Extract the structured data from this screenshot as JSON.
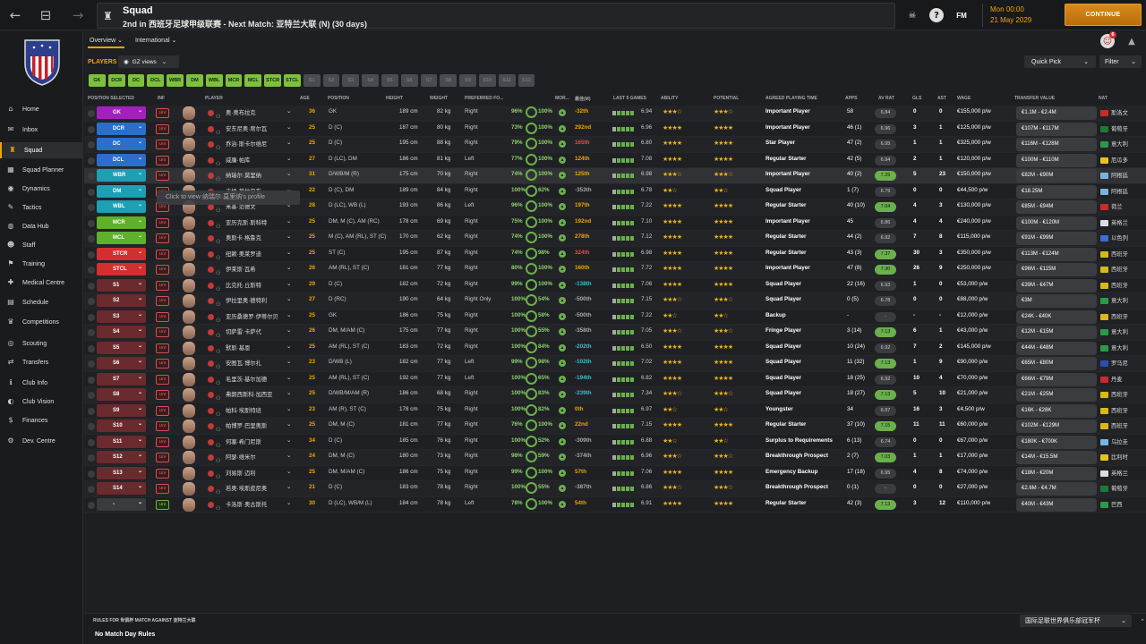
{
  "window": {
    "title": "Squad",
    "subtitle": "2nd in 西班牙足球甲级联赛 - Next Match: 亚特兰大联 (N) (30 days)"
  },
  "topbar": {
    "fm": "FM",
    "date_time": "Mon 00:00",
    "date": "21 May 2029",
    "continue": "CONTINUE",
    "notif": "6"
  },
  "sidebar": [
    {
      "label": "Home",
      "icon": "home-icon",
      "glyph": "⌂"
    },
    {
      "label": "Inbox",
      "icon": "inbox-icon",
      "glyph": "✉"
    },
    {
      "label": "Squad",
      "icon": "squad-icon",
      "glyph": "♜",
      "active": true
    },
    {
      "label": "Squad Planner",
      "icon": "planner-icon",
      "glyph": "▦"
    },
    {
      "label": "Dynamics",
      "icon": "dynamics-icon",
      "glyph": "◉"
    },
    {
      "label": "Tactics",
      "icon": "tactics-icon",
      "glyph": "✎"
    },
    {
      "label": "Data Hub",
      "icon": "data-hub-icon",
      "glyph": "◍"
    },
    {
      "label": "Staff",
      "icon": "staff-icon",
      "glyph": "☻"
    },
    {
      "label": "Training",
      "icon": "training-icon",
      "glyph": "⚑"
    },
    {
      "label": "Medical Centre",
      "icon": "medical-icon",
      "glyph": "✚"
    },
    {
      "label": "Schedule",
      "icon": "schedule-icon",
      "glyph": "▤"
    },
    {
      "label": "Competitions",
      "icon": "trophy-icon",
      "glyph": "♛"
    },
    {
      "label": "Scouting",
      "icon": "scouting-icon",
      "glyph": "◎"
    },
    {
      "label": "Transfers",
      "icon": "transfers-icon",
      "glyph": "⇄"
    },
    {
      "label": "Club Info",
      "icon": "club-info-icon",
      "glyph": "ℹ"
    },
    {
      "label": "Club Vision",
      "icon": "club-vision-icon",
      "glyph": "◐"
    },
    {
      "label": "Finances",
      "icon": "finances-icon",
      "glyph": "$"
    },
    {
      "label": "Dev. Centre",
      "icon": "dev-centre-icon",
      "glyph": "⚙"
    }
  ],
  "tabs": [
    {
      "label": "Overview",
      "active": true
    },
    {
      "label": "International"
    }
  ],
  "toolbar": {
    "players_label": "PLAYERS",
    "views": "GZ views",
    "quick_pick": "Quick Pick",
    "filter": "Filter"
  },
  "chips": [
    {
      "label": "GK",
      "on": true
    },
    {
      "label": "DCR",
      "on": true
    },
    {
      "label": "DC",
      "on": true
    },
    {
      "label": "DCL",
      "on": true
    },
    {
      "label": "WBR",
      "on": true
    },
    {
      "label": "DM",
      "on": true
    },
    {
      "label": "WBL",
      "on": true
    },
    {
      "label": "MCR",
      "on": true
    },
    {
      "label": "MCL",
      "on": true
    },
    {
      "label": "STCR",
      "on": true
    },
    {
      "label": "STCL",
      "on": true
    },
    {
      "label": "S1",
      "on": false
    },
    {
      "label": "S2",
      "on": false
    },
    {
      "label": "S3",
      "on": false
    },
    {
      "label": "S4",
      "on": false
    },
    {
      "label": "S5",
      "on": false
    },
    {
      "label": "S6",
      "on": false
    },
    {
      "label": "S7",
      "on": false
    },
    {
      "label": "S8",
      "on": false
    },
    {
      "label": "S9",
      "on": false
    },
    {
      "label": "S10",
      "on": false
    },
    {
      "label": "S11",
      "on": false
    },
    {
      "label": "S12",
      "on": false
    }
  ],
  "headers": [
    "POSITION SELECTED",
    "INF",
    "PLAYER",
    "AGE",
    "POSITION",
    "HEIGHT",
    "WEIGHT",
    "PREFERRED FO...",
    "MOR...",
    "最佳(M)",
    "LAST 5 GAMES",
    "ABILITY",
    "POTENTIAL",
    "AGREED PLAYING TIME",
    "APPS",
    "AV RAT",
    "GLS",
    "AST",
    "WAGE",
    "TRANSFER VALUE",
    "NAT"
  ],
  "tooltip": "Click to view 纳瑞尔·莫里纳's profile",
  "rows": [
    {
      "pos": "GK",
      "color": "#a41fc0",
      "inf": "Unr",
      "name": "奥·奥布拉克",
      "age": "36",
      "position": "GK",
      "height": "189 cm",
      "weight": "82 kg",
      "foot": "Right",
      "c1": "96%",
      "c2": "100%",
      "mor": "-32th",
      "morc": "#f0a500",
      "avg": "6.94",
      "ab": "★★★☆",
      "pot": "★★★☆",
      "time": "Important Player",
      "apps": "58",
      "rat": "6.84",
      "rg": false,
      "gls": "0",
      "ast": "0",
      "wage": "€155,000 p/w",
      "tv": "€1.1M - €2.4M",
      "nat": "斯洛文",
      "flag": "#cc2a2a"
    },
    {
      "pos": "DCR",
      "color": "#2a6fc9",
      "inf": "Unr",
      "name": "安东尼奥·席尔瓦",
      "age": "25",
      "position": "D (C)",
      "height": "187 cm",
      "weight": "80 kg",
      "foot": "Right",
      "c1": "73%",
      "c2": "100%",
      "mor": "292nd",
      "morc": "#f0a500",
      "avg": "6.96",
      "ab": "★★★★",
      "pot": "★★★★",
      "time": "Important Player",
      "apps": "46 (1)",
      "rat": "6.96",
      "rg": false,
      "gls": "3",
      "ast": "1",
      "wage": "€125,000 p/w",
      "tv": "€107M - €117M",
      "nat": "葡萄牙",
      "flag": "#1c7a35"
    },
    {
      "pos": "DC",
      "color": "#2a6fc9",
      "inf": "Unr",
      "name": "乔治·斯卡尔维尼",
      "age": "25",
      "position": "D (C)",
      "height": "195 cm",
      "weight": "88 kg",
      "foot": "Right",
      "c1": "79%",
      "c2": "100%",
      "mor": "165th",
      "morc": "#e05050",
      "avg": "6.80",
      "ab": "★★★★",
      "pot": "★★★★",
      "time": "Star Player",
      "apps": "47 (2)",
      "rat": "6.95",
      "rg": false,
      "gls": "1",
      "ast": "1",
      "wage": "€325,000 p/w",
      "tv": "€116M - €128M",
      "nat": "意大利",
      "flag": "#2b9a48"
    },
    {
      "pos": "DCL",
      "color": "#2a6fc9",
      "inf": "Unr",
      "name": "威廉·帕库",
      "age": "27",
      "position": "D (LC), DM",
      "height": "186 cm",
      "weight": "81 kg",
      "foot": "Left",
      "c1": "77%",
      "c2": "100%",
      "mor": "124th",
      "morc": "#f0a500",
      "avg": "7.08",
      "ab": "★★★★",
      "pot": "★★★★",
      "time": "Regular Starter",
      "apps": "42 (5)",
      "rat": "6.94",
      "rg": false,
      "gls": "2",
      "ast": "1",
      "wage": "€120,000 p/w",
      "tv": "€100M - €110M",
      "nat": "厄瓜多",
      "flag": "#e8c41a"
    },
    {
      "pos": "WBR",
      "color": "#1e9fb3",
      "inf": "Unr",
      "name": "纳瑞尔·莫里纳",
      "age": "31",
      "position": "D/WB/M (R)",
      "height": "175 cm",
      "weight": "70 kg",
      "foot": "Right",
      "c1": "74%",
      "c2": "100%",
      "mor": "125th",
      "morc": "#f0a500",
      "avg": "6.98",
      "ab": "★★★☆",
      "pot": "★★★☆",
      "time": "Important Player",
      "apps": "40 (2)",
      "rat": "7.25",
      "rg": true,
      "gls": "5",
      "ast": "23",
      "wage": "€150,000 p/w",
      "tv": "€82M - €90M",
      "nat": "阿根廷",
      "flag": "#7ab3e0",
      "hl": true
    },
    {
      "pos": "DM",
      "color": "#1e9fb3",
      "inf": "Unr",
      "name": "吉姆·莫拉安东",
      "age": "22",
      "position": "D (C), DM",
      "height": "189 cm",
      "weight": "84 kg",
      "foot": "Right",
      "c1": "100%",
      "c2": "62%",
      "mor": "-353th",
      "morc": "#aaa",
      "avg": "6.78",
      "ab": "★★☆",
      "pot": "★★☆",
      "time": "Squad Player",
      "apps": "1 (7)",
      "rat": "6.79",
      "rg": false,
      "gls": "0",
      "ast": "0",
      "wage": "€44,500 p/w",
      "tv": "€18.25M",
      "nat": "阿根廷",
      "flag": "#7ab3e0"
    },
    {
      "pos": "WBL",
      "color": "#1e9fb3",
      "inf": "Unr",
      "name": "米基·范德文",
      "age": "28",
      "position": "D (LC), WB (L)",
      "height": "193 cm",
      "weight": "86 kg",
      "foot": "Left",
      "c1": "96%",
      "c2": "100%",
      "mor": "197th",
      "morc": "#f0a500",
      "avg": "7.22",
      "ab": "★★★★",
      "pot": "★★★★",
      "time": "Regular Starter",
      "apps": "40 (10)",
      "rat": "7.04",
      "rg": true,
      "gls": "4",
      "ast": "3",
      "wage": "€130,000 p/w",
      "tv": "€85M - €94M",
      "nat": "荷兰",
      "flag": "#cc2a2a"
    },
    {
      "pos": "MCR",
      "color": "#5fb02a",
      "inf": "Unr",
      "name": "亚历克斯·斯科特",
      "age": "25",
      "position": "DM, M (C), AM (RC)",
      "height": "178 cm",
      "weight": "69 kg",
      "foot": "Right",
      "c1": "75%",
      "c2": "100%",
      "mor": "192nd",
      "morc": "#f0a500",
      "avg": "7.10",
      "ab": "★★★★",
      "pot": "★★★★",
      "time": "Important Player",
      "apps": "45",
      "rat": "6.86",
      "rg": false,
      "gls": "4",
      "ast": "4",
      "wage": "€240,000 p/w",
      "tv": "€100M - €120M",
      "nat": "英格兰",
      "flag": "#ddd"
    },
    {
      "pos": "MCL",
      "color": "#5fb02a",
      "inf": "Unr",
      "name": "奥斯卡·格鲁克",
      "age": "25",
      "position": "M (C), AM (RL), ST (C)",
      "height": "170 cm",
      "weight": "62 kg",
      "foot": "Right",
      "c1": "74%",
      "c2": "100%",
      "mor": "278th",
      "morc": "#f0a500",
      "avg": "7.12",
      "ab": "★★★★",
      "pot": "★★★★",
      "time": "Regular Starter",
      "apps": "44 (2)",
      "rat": "6.92",
      "rg": false,
      "gls": "7",
      "ast": "8",
      "wage": "€115,000 p/w",
      "tv": "€91M - €99M",
      "nat": "以色列",
      "flag": "#3a6fd0"
    },
    {
      "pos": "STCR",
      "color": "#d32f2f",
      "inf": "Unr",
      "name": "纽赖·奥莱罗迪",
      "age": "25",
      "position": "ST (C)",
      "height": "195 cm",
      "weight": "87 kg",
      "foot": "Right",
      "c1": "74%",
      "c2": "98%",
      "mor": "324th",
      "morc": "#e05050",
      "avg": "6.98",
      "ab": "★★★★",
      "pot": "★★★★",
      "time": "Regular Starter",
      "apps": "43 (3)",
      "rat": "7.37",
      "rg": true,
      "gls": "30",
      "ast": "3",
      "wage": "€350,000 p/w",
      "tv": "€113M - €124M",
      "nat": "西班牙",
      "flag": "#d8b81a"
    },
    {
      "pos": "STCL",
      "color": "#d32f2f",
      "inf": "Unr",
      "name": "伊莱斯·瓦希",
      "age": "26",
      "position": "AM (RL), ST (C)",
      "height": "181 cm",
      "weight": "77 kg",
      "foot": "Right",
      "c1": "80%",
      "c2": "100%",
      "mor": "160th",
      "morc": "#f0a500",
      "avg": "7.72",
      "ab": "★★★★",
      "pot": "★★★★",
      "time": "Important Player",
      "apps": "47 (8)",
      "rat": "7.30",
      "rg": true,
      "gls": "26",
      "ast": "9",
      "wage": "€250,000 p/w",
      "tv": "€96M - €115M",
      "nat": "西班牙",
      "flag": "#d8b81a"
    },
    {
      "pos": "S1",
      "color": "#6b2a2e",
      "inf": "Unr",
      "name": "比克托·丘斯特",
      "age": "29",
      "position": "D (C)",
      "height": "182 cm",
      "weight": "72 kg",
      "foot": "Right",
      "c1": "99%",
      "c2": "100%",
      "mor": "-138th",
      "morc": "#3fc0d0",
      "avg": "7.06",
      "ab": "★★★★",
      "pot": "★★★★",
      "time": "Squad Player",
      "apps": "22 (16)",
      "rat": "6.93",
      "rg": false,
      "gls": "1",
      "ast": "0",
      "wage": "€53,000 p/w",
      "tv": "€39M - €47M",
      "nat": "西班牙",
      "flag": "#d8b81a"
    },
    {
      "pos": "S2",
      "color": "#6b2a2e",
      "inf": "Unr",
      "name": "伊拉里奥·德特利",
      "age": "27",
      "position": "D (RC)",
      "height": "190 cm",
      "weight": "64 kg",
      "foot": "Right Only",
      "c1": "100%",
      "c2": "54%",
      "mor": "-500th",
      "morc": "#aaa",
      "avg": "7.15",
      "ab": "★★★☆",
      "pot": "★★★☆",
      "time": "Squad Player",
      "apps": "0 (5)",
      "rat": "6.78",
      "rg": false,
      "gls": "0",
      "ast": "0",
      "wage": "€88,000 p/w",
      "tv": "€3M",
      "nat": "意大利",
      "flag": "#2b9a48"
    },
    {
      "pos": "S3",
      "color": "#6b2a2e",
      "inf": "Unr",
      "name": "亚历桑德罗·伊蒂尔贝",
      "age": "25",
      "position": "GK",
      "height": "186 cm",
      "weight": "75 kg",
      "foot": "Right",
      "c1": "100%",
      "c2": "58%",
      "mor": "-500th",
      "morc": "#aaa",
      "avg": "7.22",
      "ab": "★★☆",
      "pot": "★★☆",
      "time": "Backup",
      "apps": "-",
      "rat": "-",
      "rg": false,
      "gls": "-",
      "ast": "-",
      "wage": "€12,000 p/w",
      "tv": "€24K - €40K",
      "nat": "西班牙",
      "flag": "#d8b81a"
    },
    {
      "pos": "S4",
      "color": "#6b2a2e",
      "inf": "Unr",
      "name": "切萨雷·卡萨代",
      "age": "26",
      "position": "DM, M/AM (C)",
      "height": "175 cm",
      "weight": "77 kg",
      "foot": "Right",
      "c1": "100%",
      "c2": "55%",
      "mor": "-358th",
      "morc": "#aaa",
      "avg": "7.05",
      "ab": "★★★☆",
      "pot": "★★★☆",
      "time": "Fringe Player",
      "apps": "3 (14)",
      "rat": "7.13",
      "rg": true,
      "gls": "6",
      "ast": "1",
      "wage": "€43,000 p/w",
      "tv": "€12M - €15M",
      "nat": "意大利",
      "flag": "#2b9a48"
    },
    {
      "pos": "S5",
      "color": "#6b2a2e",
      "inf": "Unr",
      "name": "默斯·基恩",
      "age": "25",
      "position": "AM (RL), ST (C)",
      "height": "183 cm",
      "weight": "72 kg",
      "foot": "Right",
      "c1": "100%",
      "c2": "84%",
      "mor": "-202th",
      "morc": "#3fc0d0",
      "avg": "6.50",
      "ab": "★★★★",
      "pot": "★★★★",
      "time": "Squad Player",
      "apps": "10 (24)",
      "rat": "6.92",
      "rg": false,
      "gls": "7",
      "ast": "2",
      "wage": "€145,000 p/w",
      "tv": "€44M - €48M",
      "nat": "意大利",
      "flag": "#2b9a48"
    },
    {
      "pos": "S6",
      "color": "#6b2a2e",
      "inf": "Unr",
      "name": "安图瓦·博尔扎",
      "age": "23",
      "position": "D/WB (L)",
      "height": "182 cm",
      "weight": "77 kg",
      "foot": "Left",
      "c1": "99%",
      "c2": "98%",
      "mor": "-102th",
      "morc": "#3fc0d0",
      "avg": "7.02",
      "ab": "★★★★",
      "pot": "★★★★",
      "time": "Squad Player",
      "apps": "11 (32)",
      "rat": "7.13",
      "rg": true,
      "gls": "1",
      "ast": "9",
      "wage": "€90,000 p/w",
      "tv": "€65M - €80M",
      "nat": "罗马尼",
      "flag": "#2a4fb0"
    },
    {
      "pos": "S7",
      "color": "#6b2a2e",
      "inf": "Unr",
      "name": "毛里茨·基尔加德",
      "age": "25",
      "position": "AM (RL), ST (C)",
      "height": "192 cm",
      "weight": "77 kg",
      "foot": "Left",
      "c1": "100%",
      "c2": "65%",
      "mor": "-194th",
      "morc": "#3fc0d0",
      "avg": "6.82",
      "ab": "★★★★",
      "pot": "★★★★",
      "time": "Squad Player",
      "apps": "18 (25)",
      "rat": "6.92",
      "rg": false,
      "gls": "10",
      "ast": "4",
      "wage": "€70,000 p/w",
      "tv": "€66M - €79M",
      "nat": "丹麦",
      "flag": "#cc2a2a"
    },
    {
      "pos": "S8",
      "color": "#6b2a2e",
      "inf": "Unr",
      "name": "弗朗西斯科·加西亚",
      "age": "25",
      "position": "D/WB/M/AM (R)",
      "height": "186 cm",
      "weight": "68 kg",
      "foot": "Right",
      "c1": "100%",
      "c2": "83%",
      "mor": "-239th",
      "morc": "#3fc0d0",
      "avg": "7.34",
      "ab": "★★★☆",
      "pot": "★★★☆",
      "time": "Squad Player",
      "apps": "18 (27)",
      "rat": "7.13",
      "rg": true,
      "gls": "5",
      "ast": "10",
      "wage": "€21,000 p/w",
      "tv": "€21M - €25M",
      "nat": "西班牙",
      "flag": "#d8b81a"
    },
    {
      "pos": "S9",
      "color": "#6b2a2e",
      "inf": "Unr",
      "name": "帕科·埃斯特班",
      "age": "23",
      "position": "AM (R), ST (C)",
      "height": "178 cm",
      "weight": "75 kg",
      "foot": "Right",
      "c1": "100%",
      "c2": "82%",
      "mor": "0th",
      "morc": "#f0a500",
      "avg": "6.97",
      "ab": "★★☆",
      "pot": "★★☆",
      "time": "Youngster",
      "apps": "34",
      "rat": "6.87",
      "rg": false,
      "gls": "16",
      "ast": "3",
      "wage": "€4,500 p/w",
      "tv": "€16K - €28K",
      "nat": "西班牙",
      "flag": "#d8b81a"
    },
    {
      "pos": "S10",
      "color": "#6b2a2e",
      "inf": "Unr",
      "name": "帕博罗·巴里奥斯",
      "age": "25",
      "position": "DM, M (C)",
      "height": "181 cm",
      "weight": "77 kg",
      "foot": "Right",
      "c1": "76%",
      "c2": "100%",
      "mor": "22nd",
      "morc": "#f0a500",
      "avg": "7.15",
      "ab": "★★★★",
      "pot": "★★★★",
      "time": "Regular Starter",
      "apps": "37 (10)",
      "rat": "7.15",
      "rg": true,
      "gls": "11",
      "ast": "11",
      "wage": "€60,000 p/w",
      "tv": "€102M - €129M",
      "nat": "西班牙",
      "flag": "#d8b81a"
    },
    {
      "pos": "S11",
      "color": "#6b2a2e",
      "inf": "Unr",
      "name": "何塞·希门尼斯",
      "age": "34",
      "position": "D (C)",
      "height": "185 cm",
      "weight": "76 kg",
      "foot": "Right",
      "c1": "100%",
      "c2": "52%",
      "mor": "-309th",
      "morc": "#aaa",
      "avg": "6.88",
      "ab": "★★☆",
      "pot": "★★☆",
      "time": "Surplus to Requirements",
      "apps": "6 (13)",
      "rat": "6.74",
      "rg": false,
      "gls": "0",
      "ast": "0",
      "wage": "€67,000 p/w",
      "tv": "€180K - €700K",
      "nat": "乌拉圭",
      "flag": "#7ab3e0"
    },
    {
      "pos": "S12",
      "color": "#6b2a2e",
      "inf": "Unr",
      "name": "阿瑟·维米尔",
      "age": "24",
      "position": "DM, M (C)",
      "height": "180 cm",
      "weight": "73 kg",
      "foot": "Right",
      "c1": "98%",
      "c2": "59%",
      "mor": "-374th",
      "morc": "#aaa",
      "avg": "6.96",
      "ab": "★★★☆",
      "pot": "★★★☆",
      "time": "Breakthrough Prospect",
      "apps": "2 (7)",
      "rat": "7.03",
      "rg": true,
      "gls": "1",
      "ast": "1",
      "wage": "€17,000 p/w",
      "tv": "€14M - €15.5M",
      "nat": "比利时",
      "flag": "#e8c41a"
    },
    {
      "pos": "S13",
      "color": "#6b2a2e",
      "inf": "Unr",
      "name": "刘易斯·迈利",
      "age": "25",
      "position": "DM, M/AM (C)",
      "height": "186 cm",
      "weight": "75 kg",
      "foot": "Right",
      "c1": "99%",
      "c2": "100%",
      "mor": "57th",
      "morc": "#f0a500",
      "avg": "7.06",
      "ab": "★★★★",
      "pot": "★★★★",
      "time": "Emergency Backup",
      "apps": "17 (18)",
      "rat": "6.95",
      "rg": false,
      "gls": "4",
      "ast": "8",
      "wage": "€74,000 p/w",
      "tv": "€18M - €20M",
      "nat": "英格兰",
      "flag": "#ddd"
    },
    {
      "pos": "S14",
      "color": "#6b2a2e",
      "inf": "Unr",
      "name": "若奥·埃斯皮尼奥",
      "age": "21",
      "position": "D (C)",
      "height": "183 cm",
      "weight": "78 kg",
      "foot": "Right",
      "c1": "100%",
      "c2": "55%",
      "mor": "-387th",
      "morc": "#aaa",
      "avg": "6.86",
      "ab": "★★★☆",
      "pot": "★★★☆",
      "time": "Breakthrough Prospect",
      "apps": "0 (1)",
      "rat": "-",
      "rg": false,
      "gls": "0",
      "ast": "0",
      "wage": "€27,000 p/w",
      "tv": "€2.6M - €4.7M",
      "nat": "葡萄牙",
      "flag": "#1c7a35"
    },
    {
      "pos": "-",
      "color": "#3a3b3f",
      "inf": "Unr",
      "infg": true,
      "name": "卡洛斯·奥古斯托",
      "age": "30",
      "position": "D (LC), WB/M (L)",
      "height": "184 cm",
      "weight": "78 kg",
      "foot": "Left",
      "c1": "78%",
      "c2": "100%",
      "mor": "54th",
      "morc": "#f0a500",
      "avg": "6.91",
      "ab": "★★★★",
      "pot": "★★★★",
      "time": "Regular Starter",
      "apps": "42 (3)",
      "rat": "7.13",
      "rg": true,
      "gls": "3",
      "ast": "12",
      "wage": "€110,000 p/w",
      "tv": "€40M - €43M",
      "nat": "巴西",
      "flag": "#2b9a48"
    }
  ],
  "footer": {
    "rules_for": "RULES FOR 世俱杯 MATCH AGAINST 亚特兰大联",
    "rules": "No Match Day Rules",
    "competition": "国际足联世界俱乐部冠军杯"
  }
}
